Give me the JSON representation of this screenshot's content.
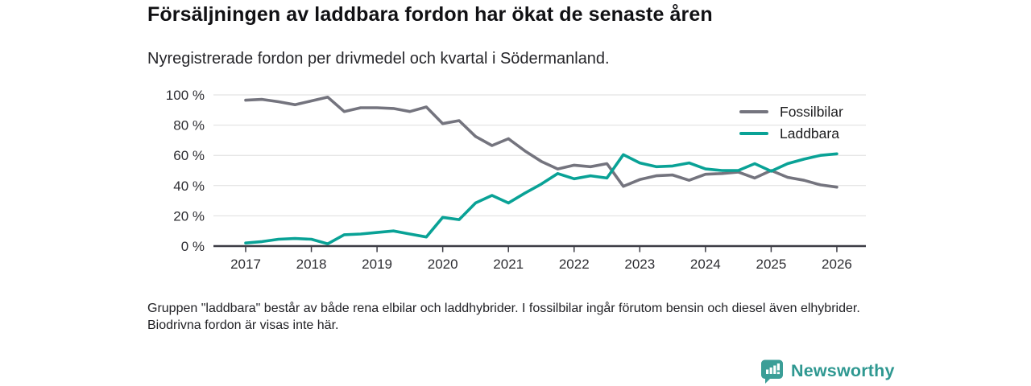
{
  "title": "Försäljningen av laddbara fordon har ökat de senaste åren",
  "subtitle": "Nyregistrerade fordon per drivmedel och kvartal i Södermanland.",
  "footnote": "Gruppen \"laddbara\" består av både rena elbilar och laddhybrider. I fossilbilar ingår förutom bensin och diesel även elhybrider. Biodrivna fordon är visas inte här.",
  "logo": {
    "text": "Newsworthy",
    "accent_color": "#3b9e97"
  },
  "colors": {
    "fossil": "#74747e",
    "laddbara": "#09a296",
    "grid": "#dedede",
    "axis": "#3c3c44",
    "tick_text": "#2e2e33"
  },
  "chart_data": {
    "type": "line",
    "title": "Försäljningen av laddbara fordon har ökat de senaste åren",
    "subtitle": "Nyregistrerade fordon per drivmedel och kvartal i Södermanland.",
    "xlabel": "",
    "ylabel": "",
    "ylim": [
      0,
      100
    ],
    "grid": true,
    "legend_position": "top-right",
    "y_ticks": [
      "0 %",
      "20 %",
      "40 %",
      "60 %",
      "80 %",
      "100 %"
    ],
    "year_ticks": [
      "2017",
      "2018",
      "2019",
      "2020",
      "2021",
      "2022",
      "2023",
      "2024",
      "2025",
      "2026"
    ],
    "x_categories": [
      "2017 Q1",
      "2017 Q2",
      "2017 Q3",
      "2017 Q4",
      "2018 Q1",
      "2018 Q2",
      "2018 Q3",
      "2018 Q4",
      "2019 Q1",
      "2019 Q2",
      "2019 Q3",
      "2019 Q4",
      "2020 Q1",
      "2020 Q2",
      "2020 Q3",
      "2020 Q4",
      "2021 Q1",
      "2021 Q2",
      "2021 Q3",
      "2021 Q4",
      "2022 Q1",
      "2022 Q2",
      "2022 Q3",
      "2022 Q4",
      "2023 Q1",
      "2023 Q2",
      "2023 Q3",
      "2023 Q4",
      "2024 Q1",
      "2024 Q2",
      "2024 Q3",
      "2024 Q4",
      "2025 Q1",
      "2025 Q2",
      "2025 Q3",
      "2025 Q4",
      "2026 Q1"
    ],
    "series": [
      {
        "name": "Fossilbilar",
        "color": "#74747e",
        "unit": "%",
        "values": [
          96.5,
          97,
          95.5,
          93.5,
          96,
          98.5,
          89,
          91.5,
          91.5,
          91,
          89,
          92,
          81,
          83,
          72.5,
          66.5,
          71,
          63,
          56,
          51,
          53.5,
          52.5,
          54.5,
          39.5,
          44,
          46.5,
          47,
          43.5,
          47.5,
          48,
          49,
          45,
          50,
          45.5,
          43.5,
          40.5,
          39
        ]
      },
      {
        "name": "Laddbara",
        "color": "#09a296",
        "unit": "%",
        "values": [
          2,
          3,
          4.5,
          5,
          4.5,
          1.5,
          7.5,
          8,
          9,
          10,
          8,
          6,
          19,
          17.5,
          28.5,
          33.5,
          28.5,
          35,
          41,
          48,
          44.5,
          46.5,
          45,
          60.5,
          55,
          52.5,
          53,
          55,
          51,
          50,
          50,
          54.5,
          49.5,
          54.5,
          57.5,
          60,
          61
        ]
      }
    ]
  }
}
